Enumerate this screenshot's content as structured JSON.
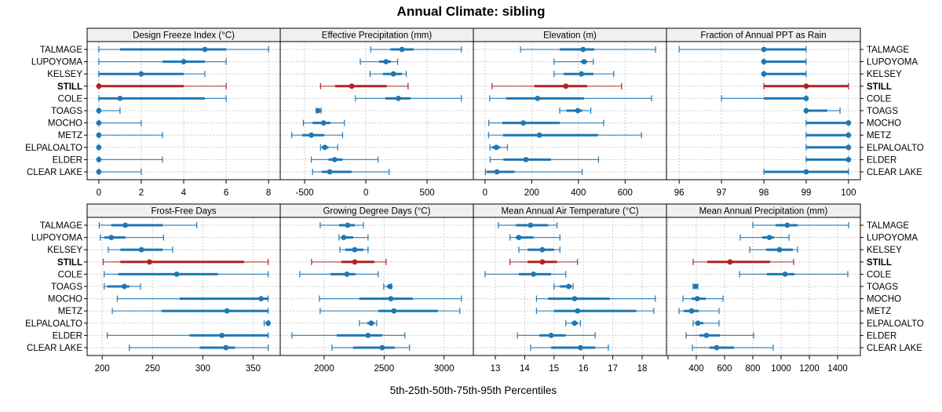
{
  "chart_data": {
    "type": "dotplot-percentile-range",
    "title": "Annual Climate: sibling",
    "xlabel": "5th-25th-50th-75th-95th Percentiles",
    "percentiles": [
      "5th",
      "25th",
      "50th",
      "75th",
      "95th"
    ],
    "sites": [
      "TALMAGE",
      "LUPOYOMA",
      "KELSEY",
      "STILL",
      "COLE",
      "TOAGS",
      "MOCHO",
      "METZ",
      "ELPALOALTO",
      "ELDER",
      "CLEAR LAKE"
    ],
    "highlight_site": "STILL",
    "colors": {
      "default": "#1f77b4",
      "highlight": "#b22222",
      "strip_bg": "#f0f0f0",
      "grid": "#cccccc"
    },
    "grid": true,
    "panels": [
      {
        "name": "Design Freeze Index (°C)",
        "xlim": [
          -0.55,
          8.55
        ],
        "ticks": [
          0,
          2,
          4,
          6,
          8
        ],
        "values": [
          [
            0,
            1,
            5,
            6,
            8
          ],
          [
            0,
            3,
            4,
            5,
            6
          ],
          [
            0,
            0,
            2,
            4,
            5
          ],
          [
            0,
            0,
            0,
            4,
            6
          ],
          [
            0,
            0,
            1,
            5,
            6
          ],
          [
            0,
            0,
            0,
            0,
            1
          ],
          [
            0,
            0,
            0,
            0,
            2
          ],
          [
            0,
            0,
            0,
            0,
            3
          ],
          [
            0,
            0,
            0,
            0,
            0
          ],
          [
            0,
            0,
            0,
            0,
            3
          ],
          [
            0,
            0,
            0,
            0,
            2
          ]
        ]
      },
      {
        "name": "Effective Precipitation (mm)",
        "xlim": [
          -699,
          878
        ],
        "ticks": [
          -500,
          0,
          500
        ],
        "values": [
          [
            40,
            200,
            295,
            390,
            780
          ],
          [
            -45,
            110,
            165,
            205,
            260
          ],
          [
            35,
            140,
            225,
            295,
            330
          ],
          [
            -370,
            -250,
            -115,
            170,
            345
          ],
          [
            -85,
            160,
            265,
            365,
            780
          ],
          [
            -405,
            -400,
            -390,
            -375,
            -365
          ],
          [
            -510,
            -435,
            -345,
            -290,
            -175
          ],
          [
            -605,
            -520,
            -445,
            -340,
            -190
          ],
          [
            -370,
            -360,
            -335,
            -305,
            -230
          ],
          [
            -445,
            -305,
            -255,
            -190,
            100
          ],
          [
            -435,
            -360,
            -295,
            -115,
            190
          ]
        ]
      },
      {
        "name": "Elevation (m)",
        "xlim": [
          -50,
          777
        ],
        "ticks": [
          0,
          200,
          400,
          600
        ],
        "values": [
          [
            152,
            320,
            420,
            468,
            730
          ],
          [
            296,
            410,
            424,
            437,
            464
          ],
          [
            296,
            337,
            413,
            464,
            551
          ],
          [
            30,
            212,
            346,
            437,
            585
          ],
          [
            20,
            91,
            225,
            424,
            713
          ],
          [
            320,
            349,
            397,
            416,
            453
          ],
          [
            16,
            74,
            164,
            320,
            508
          ],
          [
            15,
            77,
            233,
            484,
            670
          ],
          [
            21,
            29,
            48,
            65,
            96
          ],
          [
            22,
            79,
            175,
            282,
            486
          ],
          [
            2,
            7,
            51,
            126,
            416
          ]
        ]
      },
      {
        "name": "Fraction of Annual PPT as Rain",
        "xlim": [
          95.7,
          100.28
        ],
        "ticks": [
          96,
          97,
          98,
          99,
          100
        ],
        "values": [
          [
            96,
            98,
            98,
            99,
            99
          ],
          [
            98,
            98,
            98,
            99,
            99
          ],
          [
            98,
            98,
            98,
            99,
            99
          ],
          [
            98,
            98,
            99,
            100,
            100
          ],
          [
            97,
            98,
            99,
            99,
            99
          ],
          [
            99,
            99,
            99,
            99.5,
            99.8
          ],
          [
            99,
            99,
            100,
            100,
            100
          ],
          [
            99,
            99,
            100,
            100,
            100
          ],
          [
            99,
            99,
            100,
            100,
            100
          ],
          [
            99,
            99,
            100,
            100,
            100
          ],
          [
            98,
            98,
            99,
            100,
            100
          ]
        ]
      },
      {
        "name": "Frost-Free Days",
        "xlim": [
          185,
          377
        ],
        "ticks": [
          200,
          250,
          300,
          350
        ],
        "values": [
          [
            197,
            209,
            223,
            260,
            294
          ],
          [
            198,
            202,
            209,
            223,
            261
          ],
          [
            206,
            218,
            239,
            260,
            270
          ],
          [
            201,
            218,
            247,
            341,
            365
          ],
          [
            202,
            216,
            274,
            315,
            365
          ],
          [
            202,
            205,
            222,
            227,
            238
          ],
          [
            215,
            277,
            358,
            365,
            365
          ],
          [
            210,
            259,
            324,
            365,
            365
          ],
          [
            361,
            364,
            365,
            365,
            365
          ],
          [
            205,
            287,
            319,
            365,
            365
          ],
          [
            227,
            297,
            323,
            332,
            365
          ]
        ]
      },
      {
        "name": "Growing Degree Days (°C)",
        "xlim": [
          1634,
          3244
        ],
        "ticks": [
          2000,
          2500,
          3000
        ],
        "values": [
          [
            1967,
            2124,
            2196,
            2255,
            2327
          ],
          [
            2124,
            2144,
            2163,
            2242,
            2366
          ],
          [
            2131,
            2176,
            2255,
            2327,
            2366
          ],
          [
            1895,
            2144,
            2255,
            2418,
            2516
          ],
          [
            1797,
            2052,
            2190,
            2261,
            2451
          ],
          [
            2497,
            2523,
            2549,
            2556,
            2562
          ],
          [
            1961,
            2294,
            2556,
            2739,
            3144
          ],
          [
            1967,
            2451,
            2582,
            2948,
            3131
          ],
          [
            2294,
            2359,
            2392,
            2418,
            2438
          ],
          [
            1732,
            2105,
            2366,
            2484,
            2673
          ],
          [
            2065,
            2242,
            2484,
            2588,
            2712
          ]
        ]
      },
      {
        "name": "Mean Annual Air Temperature (°C)",
        "xlim": [
          12.25,
          18.83
        ],
        "ticks": [
          13,
          14,
          15,
          16,
          17,
          18
        ],
        "values": [
          [
            13.1,
            13.7,
            14.2,
            14.8,
            15.1
          ],
          [
            13.5,
            13.7,
            13.8,
            14.3,
            15.2
          ],
          [
            13.8,
            14.1,
            14.6,
            15.0,
            15.2
          ],
          [
            13.5,
            14.1,
            14.6,
            15.1,
            15.8
          ],
          [
            12.65,
            13.8,
            14.3,
            14.9,
            15.4
          ],
          [
            15.0,
            15.2,
            15.5,
            15.6,
            15.65
          ],
          [
            14.4,
            14.8,
            15.7,
            16.9,
            18.45
          ],
          [
            14.4,
            15.0,
            15.8,
            17.8,
            18.4
          ],
          [
            15.4,
            15.6,
            15.7,
            15.8,
            15.9
          ],
          [
            13.75,
            14.5,
            14.9,
            15.4,
            16.4
          ],
          [
            14.2,
            14.9,
            15.9,
            16.4,
            16.85
          ]
        ]
      },
      {
        "name": "Mean Annual Precipitation (mm)",
        "xlim": [
          189,
          1561
        ],
        "ticks": [
          200,
          400,
          600,
          800,
          1000,
          1200,
          1400
        ],
        "tick_labels": [
          "",
          "400",
          "600",
          "800",
          "1000",
          "1200",
          "1400"
        ],
        "values": [
          [
            800,
            961,
            1044,
            1117,
            1478
          ],
          [
            711,
            867,
            917,
            950,
            1056
          ],
          [
            778,
            894,
            989,
            1083,
            1117
          ],
          [
            378,
            478,
            639,
            922,
            1089
          ],
          [
            706,
            900,
            1028,
            1094,
            1472
          ],
          [
            378,
            383,
            394,
            400,
            411
          ],
          [
            306,
            367,
            406,
            467,
            589
          ],
          [
            278,
            311,
            367,
            417,
            561
          ],
          [
            378,
            394,
            411,
            450,
            561
          ],
          [
            328,
            422,
            472,
            567,
            806
          ],
          [
            372,
            494,
            544,
            667,
            944
          ]
        ]
      }
    ]
  }
}
